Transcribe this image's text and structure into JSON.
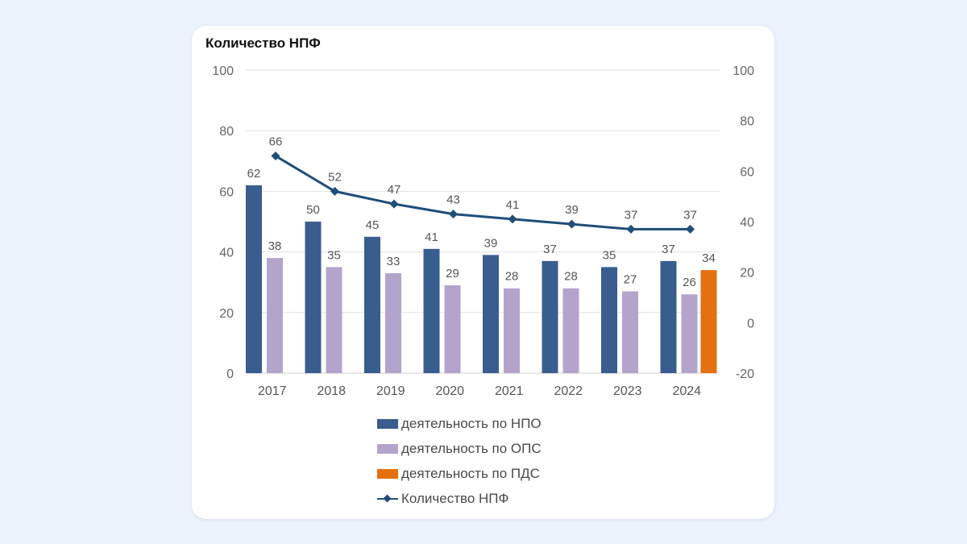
{
  "chart_data": {
    "type": "bar",
    "title": "Количество НПФ",
    "categories": [
      "2017",
      "2018",
      "2019",
      "2020",
      "2021",
      "2022",
      "2023",
      "2024"
    ],
    "series": [
      {
        "name": "деятельность по НПО",
        "type": "bar",
        "axis": "left",
        "color": "#3a5d8f",
        "values": [
          62,
          50,
          45,
          41,
          39,
          37,
          35,
          37
        ]
      },
      {
        "name": "деятельность по ОПС",
        "type": "bar",
        "axis": "left",
        "color": "#b4a4cc",
        "values": [
          38,
          35,
          33,
          29,
          28,
          28,
          27,
          26
        ]
      },
      {
        "name": "деятельность по ПДС",
        "type": "bar",
        "axis": "left",
        "color": "#e4700f",
        "values": [
          null,
          null,
          null,
          null,
          null,
          null,
          null,
          34
        ]
      },
      {
        "name": "Количество НПФ",
        "type": "line",
        "axis": "right",
        "color": "#1f4e79",
        "marker": "diamond",
        "values": [
          66,
          52,
          47,
          43,
          41,
          39,
          37,
          37
        ]
      }
    ],
    "y_left": {
      "ylim": [
        0,
        100
      ],
      "ticks": [
        "0",
        "20",
        "40",
        "60",
        "80",
        "100"
      ]
    },
    "y_right": {
      "ylim": [
        -20,
        100
      ],
      "ticks": [
        "-20",
        "0",
        "20",
        "40",
        "60",
        "80",
        "100"
      ]
    },
    "grid": true,
    "legend_position": "bottom"
  }
}
